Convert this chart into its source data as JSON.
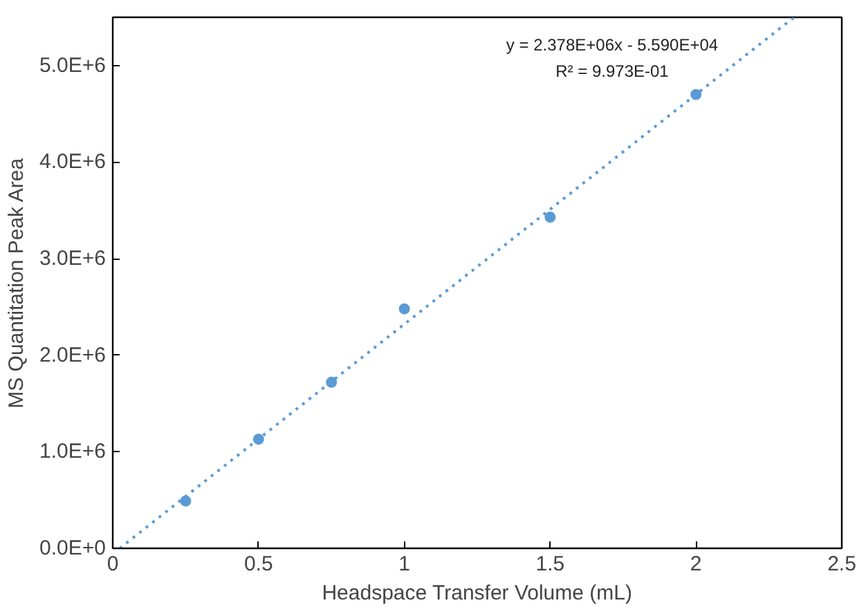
{
  "chart_data": {
    "type": "scatter",
    "xlabel": "Headspace Transfer Volume (mL)",
    "ylabel": "MS Quantitation Peak Area",
    "x": [
      0.25,
      0.5,
      0.75,
      1,
      1.5,
      2
    ],
    "series": [
      {
        "color": "#5b9bd5",
        "values": [
          490000,
          1130000,
          1720000,
          2480000,
          3430000,
          4700000
        ],
        "marker": "circle"
      },
      {
        "type": "line",
        "color": "#5b9bd5",
        "x": [
          0.024,
          2.336
        ],
        "values": [
          0,
          5500000
        ],
        "line_style": "dotted",
        "marker": "none"
      }
    ],
    "annotations": [
      "y = 2.378E+06x - 5.590E+04",
      "R² = 9.973E-01"
    ],
    "xlim": [
      0,
      2.5
    ],
    "xticks": [
      0,
      0.5,
      1,
      1.5,
      2,
      2.5
    ],
    "ylim": [
      0,
      5500000
    ],
    "yticks": [
      {
        "value": 0,
        "label": "0.0E+0"
      },
      {
        "value": 1000000,
        "label": "1.0E+6"
      },
      {
        "value": 2000000,
        "label": "2.0E+6"
      },
      {
        "value": 3000000,
        "label": "3.0E+6"
      },
      {
        "value": 4000000,
        "label": "4.0E+6"
      },
      {
        "value": 5000000,
        "label": "5.0E+6"
      }
    ],
    "grid": false
  }
}
